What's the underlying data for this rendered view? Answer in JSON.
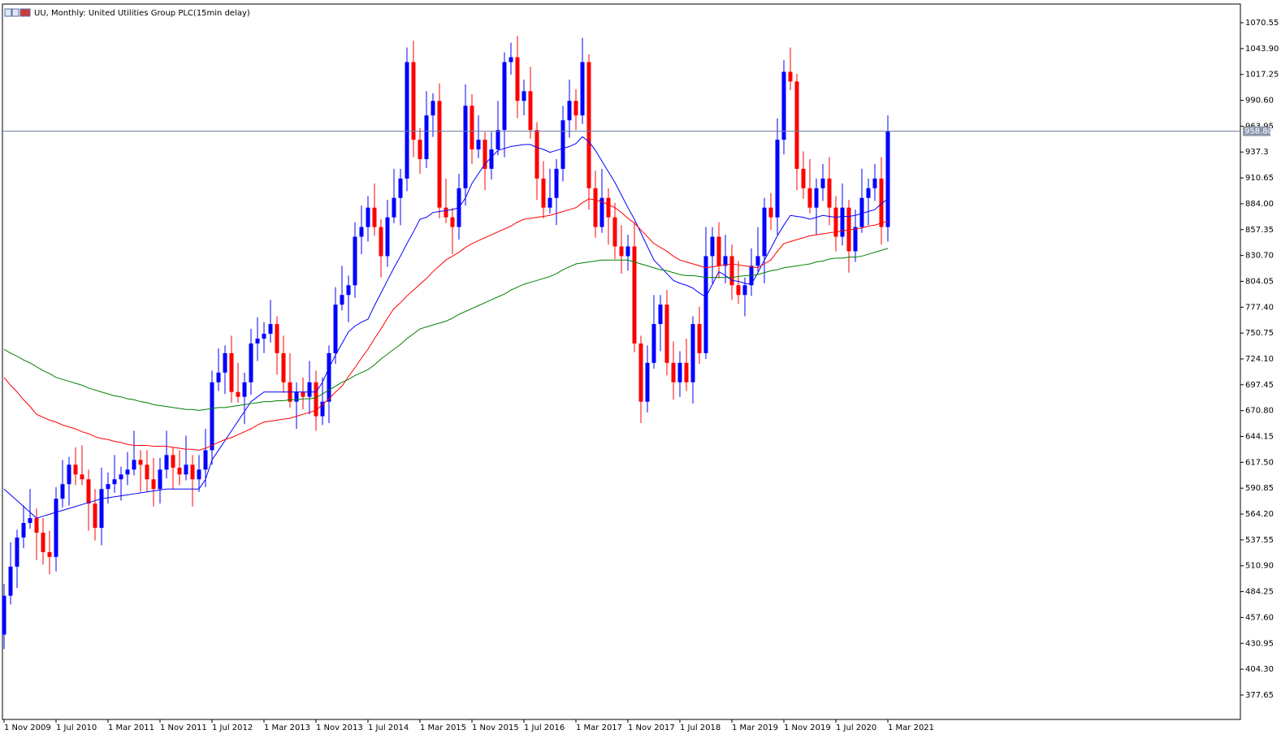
{
  "chart_data": {
    "type": "candlestick",
    "title": "UU, Monthly:  United Utilities Group PLC(15min delay)",
    "up_color": "#0000ff",
    "down_color": "#ff0000",
    "categories": [
      "1 Nov 2009",
      null,
      null,
      null,
      null,
      null,
      null,
      null,
      "1 Jul 2010",
      null,
      null,
      null,
      null,
      null,
      null,
      null,
      "1 Mar 2011",
      null,
      null,
      null,
      null,
      null,
      null,
      null,
      "1 Nov 2011",
      null,
      null,
      null,
      null,
      null,
      null,
      null,
      "1 Jul 2012",
      null,
      null,
      null,
      null,
      null,
      null,
      null,
      "1 Mar 2013",
      null,
      null,
      null,
      null,
      null,
      null,
      null,
      "1 Nov 2013",
      null,
      null,
      null,
      null,
      null,
      null,
      null,
      "1 Jul 2014",
      null,
      null,
      null,
      null,
      null,
      null,
      null,
      "1 Mar 2015",
      null,
      null,
      null,
      null,
      null,
      null,
      null,
      "1 Nov 2015",
      null,
      null,
      null,
      null,
      null,
      null,
      null,
      "1 Jul 2016",
      null,
      null,
      null,
      null,
      null,
      null,
      null,
      "1 Mar 2017",
      null,
      null,
      null,
      null,
      null,
      null,
      null,
      "1 Nov 2017",
      null,
      null,
      null,
      null,
      null,
      null,
      null,
      "1 Jul 2018",
      null,
      null,
      null,
      null,
      null,
      null,
      null,
      "1 Mar 2019",
      null,
      null,
      null,
      null,
      null,
      null,
      null,
      "1 Nov 2019",
      null,
      null,
      null,
      null,
      null,
      null,
      null,
      "1 Jul 2020",
      null,
      null,
      null,
      null,
      null,
      null,
      null,
      "1 Mar 2021"
    ],
    "open": [
      440,
      480,
      510,
      540,
      555,
      560,
      545,
      525,
      520,
      580,
      595,
      615,
      605,
      600,
      575,
      550,
      590,
      595,
      600,
      605,
      610,
      620,
      615,
      600,
      590,
      610,
      625,
      612,
      605,
      615,
      600,
      610,
      630,
      700,
      710,
      730,
      690,
      685,
      700,
      740,
      745,
      750,
      760,
      730,
      700,
      680,
      690,
      685,
      700,
      665,
      680,
      730,
      780,
      790,
      800,
      850,
      860,
      880,
      860,
      830,
      870,
      890,
      910,
      1030,
      950,
      930,
      975,
      990,
      880,
      870,
      860,
      900,
      985,
      940,
      950,
      920,
      940,
      960,
      1030,
      1035,
      990,
      1000,
      960,
      910,
      880,
      890,
      920,
      970,
      990,
      975,
      1030,
      900,
      860,
      890,
      870,
      840,
      830,
      840,
      740,
      680,
      720,
      760,
      780,
      720,
      700,
      720,
      700,
      760,
      730,
      830,
      850,
      820,
      830,
      800,
      790,
      800,
      820,
      830,
      880,
      870,
      950,
      1020,
      1010,
      920,
      900,
      880,
      900,
      910,
      880,
      850,
      880,
      835,
      860,
      890,
      900,
      910,
      860
    ],
    "high": [
      492,
      535,
      548,
      573,
      590,
      570,
      560,
      547,
      592,
      620,
      623,
      633,
      635,
      610,
      590,
      612,
      607,
      625,
      613,
      628,
      650,
      630,
      630,
      622,
      622,
      650,
      633,
      630,
      645,
      625,
      625,
      652,
      712,
      735,
      738,
      748,
      720,
      710,
      755,
      767,
      762,
      785,
      768,
      748,
      730,
      700,
      705,
      722,
      712,
      705,
      738,
      798,
      820,
      810,
      865,
      882,
      892,
      905,
      868,
      888,
      920,
      920,
      1045,
      1052,
      962,
      1000,
      998,
      1008,
      910,
      880,
      915,
      1007,
      997,
      975,
      958,
      958,
      990,
      1040,
      1050,
      1057,
      1012,
      1025,
      968,
      928,
      920,
      930,
      985,
      1012,
      1002,
      1055,
      1038,
      918,
      920,
      900,
      885,
      862,
      852,
      865,
      748,
      738,
      790,
      790,
      795,
      742,
      732,
      745,
      768,
      778,
      860,
      860,
      865,
      852,
      842,
      825,
      808,
      838,
      860,
      890,
      895,
      972,
      1032,
      1045,
      1018,
      938,
      930,
      910,
      925,
      932,
      892,
      905,
      888,
      878,
      920,
      910,
      925,
      932,
      975
    ],
    "low": [
      425,
      471,
      488,
      529,
      549,
      517,
      512,
      502,
      505,
      571,
      573,
      594,
      594,
      547,
      537,
      532,
      575,
      586,
      578,
      594,
      604,
      587,
      587,
      572,
      575,
      601,
      590,
      594,
      599,
      572,
      587,
      592,
      615,
      691,
      688,
      679,
      679,
      657,
      687,
      722,
      730,
      741,
      708,
      689,
      674,
      652,
      672,
      667,
      650,
      656,
      658,
      719,
      774,
      762,
      787,
      832,
      845,
      851,
      808,
      819,
      864,
      862,
      897,
      932,
      915,
      921,
      953,
      869,
      864,
      832,
      847,
      882,
      925,
      931,
      898,
      909,
      934,
      932,
      1017,
      972,
      975,
      951,
      888,
      869,
      874,
      862,
      907,
      952,
      960,
      966,
      878,
      849,
      854,
      842,
      827,
      812,
      815,
      731,
      658,
      669,
      714,
      732,
      707,
      682,
      685,
      691,
      678,
      719,
      724,
      802,
      807,
      802,
      785,
      781,
      768,
      789,
      814,
      802,
      857,
      852,
      935,
      1001,
      898,
      889,
      874,
      852,
      887,
      862,
      835,
      841,
      813,
      824,
      854,
      862,
      887,
      842,
      845
    ],
    "close": [
      480,
      510,
      540,
      555,
      560,
      545,
      525,
      520,
      580,
      595,
      615,
      605,
      600,
      575,
      550,
      590,
      595,
      600,
      605,
      610,
      620,
      615,
      600,
      590,
      610,
      625,
      612,
      605,
      615,
      600,
      610,
      630,
      700,
      710,
      730,
      690,
      685,
      700,
      740,
      745,
      750,
      760,
      730,
      700,
      680,
      690,
      685,
      700,
      665,
      680,
      730,
      780,
      790,
      800,
      850,
      860,
      880,
      860,
      830,
      870,
      890,
      910,
      1030,
      950,
      930,
      975,
      990,
      880,
      870,
      860,
      900,
      985,
      940,
      950,
      920,
      940,
      960,
      1030,
      1035,
      990,
      1000,
      960,
      910,
      880,
      890,
      920,
      970,
      990,
      975,
      1030,
      900,
      860,
      890,
      870,
      840,
      830,
      840,
      740,
      680,
      720,
      760,
      780,
      720,
      700,
      720,
      700,
      760,
      730,
      830,
      850,
      820,
      830,
      800,
      790,
      800,
      820,
      830,
      880,
      870,
      950,
      1020,
      1010,
      920,
      900,
      880,
      900,
      910,
      880,
      850,
      880,
      835,
      860,
      890,
      900,
      910,
      860,
      958.8
    ],
    "series": [
      {
        "color": "#0000ff",
        "values": [
          590,
          584,
          578,
          572,
          566,
          560,
          562,
          564,
          566,
          568,
          570,
          572,
          574,
          576,
          578,
          580,
          581,
          582,
          583,
          584,
          585,
          586,
          587,
          588,
          589,
          590,
          590,
          590,
          590,
          590,
          590,
          600,
          620,
          630,
          640,
          650,
          660,
          670,
          680,
          685,
          690,
          690,
          690,
          690,
          690,
          690,
          690,
          690,
          690,
          700,
          715,
          728,
          740,
          752,
          758,
          762,
          765,
          779,
          792,
          805,
          818,
          830,
          843,
          855,
          868,
          870,
          875,
          876,
          877,
          878,
          880,
          890,
          905,
          915,
          925,
          932,
          939,
          941,
          943,
          944,
          945,
          945,
          942,
          940,
          937,
          939,
          941,
          943,
          946,
          953,
          948,
          939,
          928,
          917,
          906,
          893,
          880,
          868,
          854,
          840,
          826,
          819,
          812,
          805,
          802,
          800,
          797,
          792,
          788,
          801,
          814,
          810,
          805,
          804,
          802,
          801,
          813,
          826,
          838,
          851,
          862,
          872,
          871,
          870,
          868,
          870,
          872,
          871,
          870,
          871,
          871,
          872,
          874,
          876,
          878,
          884,
          889
        ]
      },
      {
        "color": "#ff0000",
        "values": [
          705,
          697,
          690,
          682,
          675,
          667,
          664,
          661,
          659,
          656,
          654,
          652,
          649,
          647,
          644,
          642,
          641,
          639,
          638,
          636,
          635,
          635,
          635,
          634,
          634,
          634,
          633,
          632,
          631,
          631,
          630,
          632,
          635,
          638,
          641,
          643,
          646,
          649,
          652,
          656,
          659,
          660,
          661,
          662,
          663,
          665,
          667,
          669,
          671,
          677,
          683,
          690,
          696,
          706,
          715,
          725,
          734,
          745,
          755,
          766,
          776,
          782,
          789,
          795,
          801,
          807,
          814,
          820,
          826,
          830,
          834,
          839,
          843,
          846,
          849,
          852,
          855,
          858,
          861,
          865,
          868,
          869,
          870,
          871,
          872,
          874,
          876,
          878,
          880,
          885,
          889,
          888,
          886,
          883,
          880,
          875,
          869,
          864,
          857,
          850,
          843,
          839,
          835,
          830,
          826,
          824,
          822,
          820,
          818,
          819,
          820,
          821,
          822,
          821,
          820,
          819,
          818,
          822,
          826,
          835,
          843,
          845,
          847,
          849,
          851,
          852,
          853,
          854,
          855,
          856,
          857,
          858,
          859,
          861,
          862,
          864,
          866
        ]
      },
      {
        "color": "#008000",
        "values": [
          734,
          730,
          727,
          723,
          720,
          716,
          712,
          709,
          705,
          703,
          701,
          699,
          697,
          694,
          692,
          690,
          688,
          686,
          685,
          683,
          682,
          680,
          679,
          677,
          676,
          675,
          674,
          673,
          672,
          672,
          671,
          672,
          673,
          674,
          674,
          675,
          676,
          677,
          678,
          679,
          680,
          680,
          681,
          681,
          682,
          682,
          683,
          683,
          684,
          688,
          692,
          696,
          700,
          703,
          707,
          710,
          713,
          718,
          724,
          729,
          734,
          739,
          745,
          750,
          755,
          757,
          759,
          761,
          763,
          766,
          770,
          773,
          776,
          779,
          782,
          785,
          788,
          791,
          795,
          798,
          801,
          803,
          805,
          807,
          809,
          812,
          816,
          819,
          822,
          823,
          824,
          825,
          826,
          826,
          826,
          826,
          826,
          824,
          822,
          820,
          818,
          816,
          815,
          813,
          811,
          810,
          810,
          809,
          808,
          808,
          808,
          808,
          808,
          809,
          810,
          810,
          811,
          813,
          815,
          816,
          818,
          819,
          820,
          821,
          822,
          824,
          825,
          827,
          828,
          828,
          829,
          829,
          830,
          832,
          834,
          836,
          838
        ]
      }
    ],
    "ylim": [
      352.5,
      1089.8
    ],
    "yticks": [
      1070.55,
      {
        "value": 1043.9,
        "label": "1043.90"
      },
      1017.25,
      {
        "value": 990.6,
        "label": "990.60"
      },
      963.95,
      937.3,
      910.65,
      {
        "value": 884,
        "label": "884.00"
      },
      857.35,
      {
        "value": 830.7,
        "label": "830.70"
      },
      804.05,
      {
        "value": 777.4,
        "label": "777.40"
      },
      750.75,
      {
        "value": 724.1,
        "label": "724.10"
      },
      697.45,
      {
        "value": 670.8,
        "label": "670.80"
      },
      644.15,
      {
        "value": 617.5,
        "label": "617.50"
      },
      590.85,
      {
        "value": 564.2,
        "label": "564.20"
      },
      537.55,
      {
        "value": 510.9,
        "label": "510.90"
      },
      484.25,
      {
        "value": 457.6,
        "label": "457.60"
      },
      430.95,
      {
        "value": 404.3,
        "label": "404.30"
      },
      377.65
    ],
    "last_price": {
      "value": 958.8,
      "label": "958.80"
    }
  }
}
